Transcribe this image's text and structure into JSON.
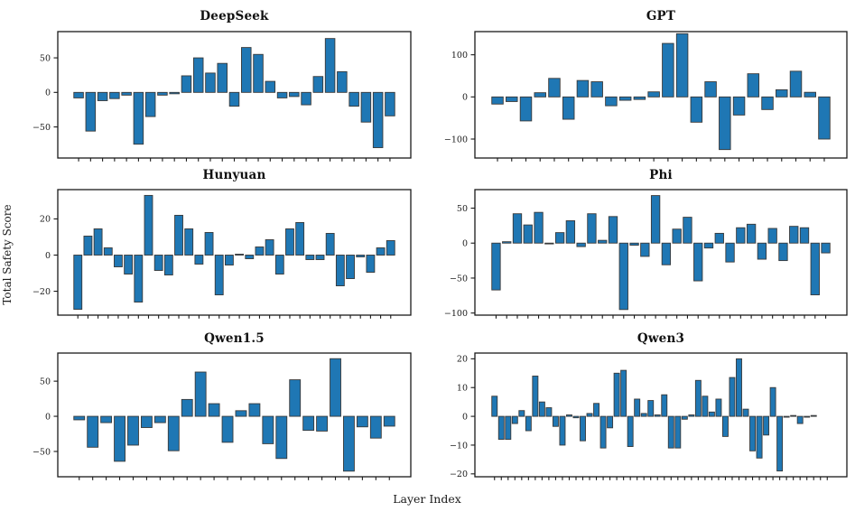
{
  "figure": {
    "ylabel": "Total Safety Score",
    "xlabel": "Layer Index",
    "bar_color": "#1f77b4",
    "bar_edge_color": "#3a3a3a",
    "frame_color": "#1a1a1a"
  },
  "chart_data": [
    {
      "type": "bar",
      "title": "DeepSeek",
      "x_note": "layer index, one unlabeled tick per bar",
      "values": [
        -8,
        -56,
        -12,
        -9,
        -4,
        -75,
        -35,
        -4,
        -2,
        24,
        50,
        28,
        42,
        -20,
        65,
        55,
        16,
        -8,
        -6,
        -18,
        23,
        78,
        30,
        -20,
        -43,
        -80,
        -34
      ],
      "yticks": [
        50,
        0,
        -50
      ],
      "ylim": [
        -95,
        88
      ]
    },
    {
      "type": "bar",
      "title": "GPT",
      "x_note": "layer index, one unlabeled tick per bar",
      "values": [
        -17,
        -11,
        -57,
        10,
        44,
        -53,
        39,
        36,
        -21,
        -8,
        -6,
        12,
        127,
        150,
        -60,
        36,
        -125,
        -43,
        55,
        -30,
        17,
        61,
        11,
        -100
      ],
      "yticks": [
        100,
        0,
        -100
      ],
      "ylim": [
        -145,
        155
      ]
    },
    {
      "type": "bar",
      "title": "Hunyuan",
      "x_note": "layer index, one unlabeled tick per bar",
      "values": [
        -30,
        10.5,
        14.5,
        4,
        -6.5,
        -10.5,
        -26,
        33,
        -8.5,
        -11,
        22,
        14.5,
        -5,
        12.5,
        -22,
        -5.5,
        0.5,
        -2,
        4.5,
        8.5,
        -10.5,
        14.5,
        18,
        -2.5,
        -2.5,
        12,
        -17,
        -13,
        -1,
        -9.5,
        4,
        8
      ],
      "yticks": [
        20,
        0,
        -20
      ],
      "ylim": [
        -33.2,
        36.2
      ]
    },
    {
      "type": "bar",
      "title": "Phi",
      "x_note": "layer index, one unlabeled tick per bar",
      "values": [
        -67,
        2,
        42,
        26,
        44,
        -1,
        15,
        32,
        -5,
        42,
        4,
        38,
        -95,
        -3,
        -19,
        68,
        -31,
        20,
        37,
        -54,
        -7,
        14,
        -27,
        22,
        27,
        -23,
        21,
        -25,
        24,
        22,
        -74,
        -14
      ],
      "yticks": [
        50,
        0,
        -50,
        -100
      ],
      "ylim": [
        -103,
        76.5
      ]
    },
    {
      "type": "bar",
      "title": "Qwen1.5",
      "x_note": "layer index, one unlabeled tick per bar",
      "values": [
        -5,
        -44,
        -9,
        -64,
        -41,
        -16,
        -9,
        -49,
        24,
        63,
        18,
        -37,
        8,
        18,
        -39,
        -60,
        52,
        -20,
        -21,
        82,
        -78,
        -15,
        -31,
        -14
      ],
      "yticks": [
        50,
        0,
        -50
      ],
      "ylim": [
        -86,
        90
      ]
    },
    {
      "type": "bar",
      "title": "Qwen3",
      "x_note": "layer index, one unlabeled tick per bar",
      "values": [
        7,
        -8,
        -8,
        -2.5,
        2,
        -5,
        14,
        5,
        3,
        -3.5,
        -10,
        0.5,
        -0.5,
        -8.5,
        1,
        4.5,
        -11,
        -4,
        15,
        16,
        -10.5,
        6,
        1,
        5.5,
        0.5,
        7.5,
        -11,
        -11,
        -1,
        0.5,
        12.5,
        7,
        1.5,
        6,
        -7,
        13.5,
        20,
        2.5,
        -12,
        -14.5,
        -6.5,
        10,
        -19,
        -0.3,
        0.3,
        -2.5,
        -0.3,
        0.3,
        0,
        0
      ],
      "yticks": [
        20,
        10,
        0,
        -10,
        -20
      ],
      "ylim": [
        -21,
        22
      ]
    }
  ]
}
